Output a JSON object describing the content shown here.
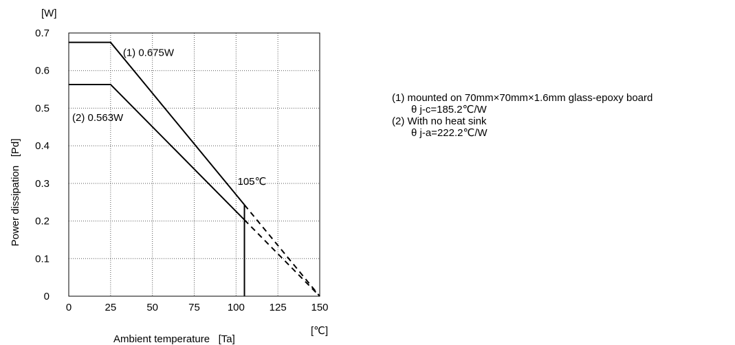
{
  "chart_data": {
    "type": "line",
    "xlabel": "Ambient temperature   [Ta]",
    "ylabel": "Power dissipation   [Pd]",
    "x_unit": "[℃]",
    "y_unit": "[W]",
    "xlim": [
      0,
      150
    ],
    "ylim": [
      0,
      0.7
    ],
    "x_ticks": [
      0,
      25,
      50,
      75,
      100,
      125,
      150
    ],
    "y_ticks": [
      "0",
      "0.1",
      "0.2",
      "0.3",
      "0.4",
      "0.5",
      "0.6",
      "0.7"
    ],
    "grid": true,
    "series": [
      {
        "name": "(1) 0.675W",
        "x": [
          0,
          25,
          105
        ],
        "y": [
          0.675,
          0.675,
          0.243
        ],
        "extrapolated": {
          "x": [
            105,
            150
          ],
          "y": [
            0.243,
            0
          ]
        },
        "color": "#000000"
      },
      {
        "name": "(2) 0.563W",
        "x": [
          0,
          25,
          105
        ],
        "y": [
          0.563,
          0.563,
          0.203
        ],
        "extrapolated": {
          "x": [
            105,
            150
          ],
          "y": [
            0.203,
            0
          ]
        },
        "color": "#000000"
      }
    ],
    "vertical_marker": {
      "x": 105,
      "y_top": 0.243,
      "label": "105℃"
    }
  },
  "notes": [
    {
      "text": "(1) mounted on 70mm×70mm×1.6mm glass-epoxy board",
      "indent": false
    },
    {
      "text": "θ j-c=185.2℃/W",
      "indent": true
    },
    {
      "text": "(2) With no heat sink",
      "indent": false
    },
    {
      "text": "θ j-a=222.2℃/W",
      "indent": true
    }
  ]
}
